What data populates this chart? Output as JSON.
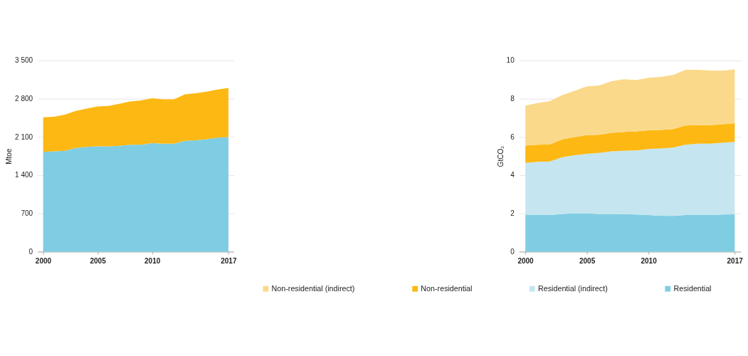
{
  "chart_data": [
    {
      "type": "area",
      "stacked": true,
      "ylabel": "Mtoe",
      "x": [
        2000,
        2001,
        2002,
        2003,
        2004,
        2005,
        2006,
        2007,
        2008,
        2009,
        2010,
        2011,
        2012,
        2013,
        2014,
        2015,
        2016,
        2017
      ],
      "xlim": [
        1999.5,
        2017.5
      ],
      "xticks": [
        2000,
        2005,
        2010,
        2017
      ],
      "ylim": [
        0,
        3500
      ],
      "yticks": [
        0,
        700,
        {
          "value": 1400,
          "label": "1 400"
        },
        {
          "value": 2100,
          "label": "2 100"
        },
        {
          "value": 2800,
          "label": "2 800"
        },
        {
          "value": 3500,
          "label": "3 500"
        }
      ],
      "grid": "y",
      "legend": false,
      "series": [
        {
          "color": "#7fcde3",
          "values": [
            1830,
            1840,
            1850,
            1900,
            1920,
            1930,
            1930,
            1940,
            1960,
            1960,
            1990,
            1980,
            1980,
            2030,
            2040,
            2060,
            2090,
            2100
          ]
        },
        {
          "color": "#fdb813",
          "values": [
            630,
            630,
            660,
            680,
            700,
            730,
            740,
            770,
            790,
            810,
            820,
            810,
            810,
            850,
            860,
            870,
            880,
            900
          ]
        }
      ]
    },
    {
      "type": "area",
      "stacked": true,
      "ylabel": "GtCO₂",
      "x": [
        2000,
        2001,
        2002,
        2003,
        2004,
        2005,
        2006,
        2007,
        2008,
        2009,
        2010,
        2011,
        2012,
        2013,
        2014,
        2015,
        2016,
        2017
      ],
      "xlim": [
        1999.5,
        2017.5
      ],
      "xticks": [
        2000,
        2005,
        2010,
        2017
      ],
      "ylim": [
        0,
        10
      ],
      "yticks": [
        0,
        2,
        4,
        6,
        8,
        10
      ],
      "grid": "y",
      "legend": "bottom",
      "series": [
        {
          "name": "Residential",
          "color": "#7fcde3",
          "values": [
            1.95,
            1.92,
            1.92,
            1.98,
            2.0,
            2.0,
            1.98,
            1.98,
            1.97,
            1.95,
            1.92,
            1.88,
            1.87,
            1.92,
            1.92,
            1.92,
            1.95,
            1.96
          ]
        },
        {
          "name": "Residential (indirect)",
          "color": "#c5e6f0",
          "values": [
            2.7,
            2.78,
            2.8,
            2.97,
            3.05,
            3.12,
            3.19,
            3.27,
            3.31,
            3.35,
            3.45,
            3.52,
            3.58,
            3.68,
            3.73,
            3.73,
            3.75,
            3.79
          ]
        },
        {
          "name": "Non-residential",
          "color": "#fdb813",
          "values": [
            0.9,
            0.9,
            0.9,
            0.93,
            0.95,
            0.98,
            0.95,
            0.97,
            0.99,
            1.0,
            0.98,
            0.97,
            0.97,
            1.0,
            0.97,
            0.97,
            0.97,
            0.97
          ]
        },
        {
          "name": "Non-residential (indirect)",
          "color": "#fbd98a",
          "values": [
            2.1,
            2.18,
            2.26,
            2.32,
            2.42,
            2.55,
            2.58,
            2.7,
            2.75,
            2.68,
            2.75,
            2.78,
            2.83,
            2.92,
            2.9,
            2.86,
            2.8,
            2.83
          ]
        }
      ]
    }
  ]
}
